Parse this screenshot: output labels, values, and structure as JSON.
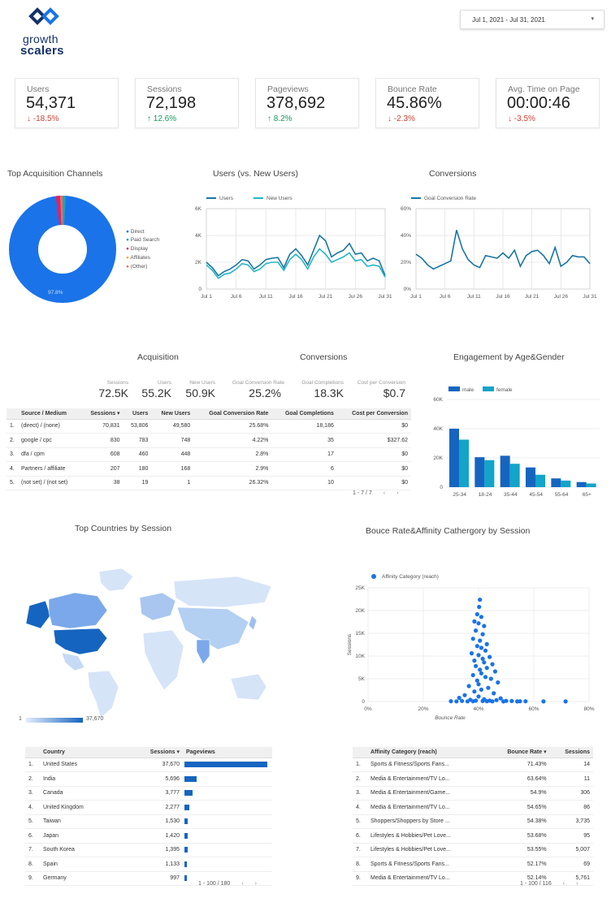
{
  "brand": {
    "line1": "growth",
    "line2": "scalers"
  },
  "date_range": {
    "label": "Jul 1, 2021 - Jul 31, 2021"
  },
  "kpis": [
    {
      "label": "Users",
      "value": "54,371",
      "delta": "-18.5%",
      "dir": "down"
    },
    {
      "label": "Sessions",
      "value": "72,198",
      "delta": "12.6%",
      "dir": "up"
    },
    {
      "label": "Pageviews",
      "value": "378,692",
      "delta": "8.2%",
      "dir": "up"
    },
    {
      "label": "Bounce Rate",
      "value": "45.86%",
      "delta": "-2.3%",
      "dir": "down"
    },
    {
      "label": "Avg. Time on Page",
      "value": "00:00:46",
      "delta": "-3.5%",
      "dir": "down"
    }
  ],
  "donut": {
    "title": "Top Acquisition Channels",
    "legend": [
      "Direct",
      "Paid Search",
      "Display",
      "Affiliates",
      "(Other)"
    ],
    "center_label": "97.8%",
    "colors": [
      "#1a73e8",
      "#12a4c9",
      "#e91e63",
      "#f9a825",
      "#ff7043"
    ]
  },
  "users_chart": {
    "title": "Users (vs. New Users)",
    "legend": [
      "Users",
      "New Users"
    ],
    "y_ticks": [
      "6K",
      "4K",
      "2K",
      "0"
    ],
    "x_ticks": [
      "Jul 1",
      "Jul 6",
      "Jul 11",
      "Jul 16",
      "Jul 21",
      "Jul 26",
      "Jul 31"
    ]
  },
  "conv_chart": {
    "title": "Conversions",
    "legend": [
      "Goal Conversion Rate"
    ],
    "y_ticks": [
      "60%",
      "40%",
      "20%",
      "0%"
    ],
    "x_ticks": [
      "Jul 1",
      "Jul 6",
      "Jul 11",
      "Jul 16",
      "Jul 21",
      "Jul 26",
      "Jul 31"
    ]
  },
  "acq_section": {
    "acq_title": "Acquisition",
    "conv_title": "Conversions"
  },
  "scorecards": [
    {
      "label": "Sessions",
      "value": "72.5K"
    },
    {
      "label": "Users",
      "value": "55.2K"
    },
    {
      "label": "New Users",
      "value": "50.9K"
    },
    {
      "label": "Goal Conversion Rate",
      "value": "25.2%"
    },
    {
      "label": "Goal Completions",
      "value": "18.3K"
    },
    {
      "label": "Cost per Conversion",
      "value": "$0.7"
    }
  ],
  "acq_table": {
    "headers": [
      "Source / Medium",
      "Sessions ▾",
      "Users",
      "New Users",
      "Goal Conversion Rate",
      "Goal Completions",
      "Cost per Conversion"
    ],
    "rows": [
      [
        "1.",
        "(direct) / (none)",
        "70,831",
        "53,806",
        "49,580",
        "25.68%",
        "18,186",
        "$0"
      ],
      [
        "2.",
        "google / cpc",
        "830",
        "783",
        "748",
        "4.22%",
        "35",
        "$327.62"
      ],
      [
        "3.",
        "dfa / cpm",
        "608",
        "460",
        "448",
        "2.8%",
        "17",
        "$0"
      ],
      [
        "4.",
        "Partners / affiliate",
        "207",
        "180",
        "168",
        "2.9%",
        "6",
        "$0"
      ],
      [
        "5.",
        "(not set) / (not set)",
        "38",
        "19",
        "1",
        "26.32%",
        "10",
        "$0"
      ]
    ],
    "pager": "1 - 7 / 7"
  },
  "engagement": {
    "title": "Engagement by Age&Gender",
    "legend": [
      "male",
      "female"
    ],
    "y_ticks": [
      "60K",
      "40K",
      "20K",
      "0"
    ],
    "colors": [
      "#1565c0",
      "#12a4c9"
    ]
  },
  "chart_data": [
    {
      "type": "line",
      "title": "Users (vs. New Users)",
      "x": [
        "Jul 1",
        "Jul 2",
        "Jul 3",
        "Jul 4",
        "Jul 5",
        "Jul 6",
        "Jul 7",
        "Jul 8",
        "Jul 9",
        "Jul 10",
        "Jul 11",
        "Jul 12",
        "Jul 13",
        "Jul 14",
        "Jul 15",
        "Jul 16",
        "Jul 17",
        "Jul 18",
        "Jul 19",
        "Jul 20",
        "Jul 21",
        "Jul 22",
        "Jul 23",
        "Jul 24",
        "Jul 25",
        "Jul 26",
        "Jul 27",
        "Jul 28",
        "Jul 29",
        "Jul 30",
        "Jul 31"
      ],
      "ylim": [
        0,
        6000
      ],
      "series": [
        {
          "name": "Users",
          "values": [
            2000,
            1600,
            1000,
            1300,
            1500,
            1800,
            2200,
            2100,
            1500,
            1800,
            2200,
            2300,
            2350,
            1600,
            2600,
            3000,
            2500,
            1800,
            2900,
            4000,
            3600,
            2400,
            2700,
            2900,
            3400,
            2600,
            2700,
            2100,
            2300,
            2100,
            1000
          ]
        },
        {
          "name": "New Users",
          "values": [
            1800,
            1400,
            800,
            1100,
            1200,
            1500,
            1900,
            1800,
            1300,
            1500,
            1900,
            2000,
            2000,
            1400,
            2200,
            2600,
            2200,
            1500,
            2400,
            3000,
            2600,
            2000,
            2200,
            2400,
            2700,
            2100,
            2200,
            1700,
            1800,
            1700,
            900
          ]
        }
      ]
    },
    {
      "type": "line",
      "title": "Conversions",
      "x": [
        "Jul 1",
        "Jul 2",
        "Jul 3",
        "Jul 4",
        "Jul 5",
        "Jul 6",
        "Jul 7",
        "Jul 8",
        "Jul 9",
        "Jul 10",
        "Jul 11",
        "Jul 12",
        "Jul 13",
        "Jul 14",
        "Jul 15",
        "Jul 16",
        "Jul 17",
        "Jul 18",
        "Jul 19",
        "Jul 20",
        "Jul 21",
        "Jul 22",
        "Jul 23",
        "Jul 24",
        "Jul 25",
        "Jul 26",
        "Jul 27",
        "Jul 28",
        "Jul 29",
        "Jul 30",
        "Jul 31"
      ],
      "ylim": [
        0,
        60
      ],
      "series": [
        {
          "name": "Goal Conversion Rate",
          "values": [
            26,
            23,
            18,
            15,
            17,
            19,
            21,
            44,
            30,
            22,
            18,
            16,
            25,
            24,
            23,
            27,
            23,
            29,
            17,
            25,
            28,
            29,
            25,
            19,
            31,
            17,
            20,
            25,
            24,
            24,
            19
          ]
        }
      ]
    },
    {
      "type": "bar",
      "title": "Engagement by Age&Gender",
      "categories": [
        "25-34",
        "18-24",
        "35-44",
        "45-54",
        "55-64",
        "65+"
      ],
      "ylim": [
        0,
        60000
      ],
      "series": [
        {
          "name": "male",
          "values": [
            40000,
            20500,
            21500,
            13500,
            6000,
            3500
          ]
        },
        {
          "name": "female",
          "values": [
            32500,
            18500,
            16000,
            8500,
            4500,
            2500
          ]
        }
      ]
    },
    {
      "type": "scatter",
      "title": "Bouce Rate&Affinity Cathergory by Session",
      "xlabel": "Bounce Rate",
      "ylabel": "Sessions",
      "series_label": "Affinity Category (reach)",
      "xlim": [
        0,
        80
      ],
      "ylim": [
        0,
        25000
      ],
      "x_ticks": [
        "0%",
        "20%",
        "40%",
        "60%",
        "80%"
      ],
      "y_ticks": [
        "25K",
        "20K",
        "15K",
        "10K",
        "5K",
        "0"
      ],
      "points": [
        [
          40.5,
          22400
        ],
        [
          40.2,
          20800
        ],
        [
          39.5,
          19200
        ],
        [
          41,
          18600
        ],
        [
          38.5,
          17600
        ],
        [
          40,
          17200
        ],
        [
          42,
          16600
        ],
        [
          39,
          15600
        ],
        [
          41.5,
          14800
        ],
        [
          38,
          13800
        ],
        [
          40.5,
          13400
        ],
        [
          43,
          12600
        ],
        [
          39.5,
          12200
        ],
        [
          41,
          11800
        ],
        [
          42.5,
          11200
        ],
        [
          37.5,
          10600
        ],
        [
          40,
          10200
        ],
        [
          44,
          9800
        ],
        [
          41.5,
          9400
        ],
        [
          38.5,
          9000
        ],
        [
          42,
          8600
        ],
        [
          45,
          8200
        ],
        [
          39,
          7800
        ],
        [
          43,
          7400
        ],
        [
          40.5,
          7000
        ],
        [
          46,
          6600
        ],
        [
          41,
          6200
        ],
        [
          38,
          5800
        ],
        [
          42.5,
          5400
        ],
        [
          44.5,
          5000
        ],
        [
          39.5,
          4600
        ],
        [
          47,
          4200
        ],
        [
          40,
          3800
        ],
        [
          36.5,
          3400
        ],
        [
          43.5,
          3000
        ],
        [
          41,
          2600
        ],
        [
          38.5,
          2200
        ],
        [
          45.5,
          1800
        ],
        [
          35,
          1400
        ],
        [
          40,
          1100
        ],
        [
          33,
          800
        ],
        [
          48,
          700
        ],
        [
          42,
          500
        ],
        [
          37,
          400
        ],
        [
          46.5,
          300
        ],
        [
          39,
          200
        ],
        [
          44,
          200
        ],
        [
          50,
          150
        ],
        [
          34,
          120
        ],
        [
          41.5,
          100
        ],
        [
          52,
          100
        ],
        [
          30,
          80
        ],
        [
          43,
          70
        ],
        [
          55,
          60
        ],
        [
          38,
          60
        ],
        [
          57,
          50
        ],
        [
          36,
          40
        ],
        [
          63.5,
          20
        ],
        [
          71.5,
          10
        ],
        [
          45,
          30
        ],
        [
          32,
          30
        ],
        [
          49,
          25
        ],
        [
          54,
          20
        ]
      ]
    }
  ],
  "map": {
    "title": "Top Countries by Session",
    "scale_min": "1",
    "scale_max": "37,670"
  },
  "country_table": {
    "headers": [
      "Country",
      "Sessions ▾",
      "Pageviews"
    ],
    "rows": [
      [
        "1.",
        "United States",
        "37,670",
        1.0
      ],
      [
        "2.",
        "India",
        "5,696",
        0.151
      ],
      [
        "3.",
        "Canada",
        "3,777",
        0.1
      ],
      [
        "4.",
        "United Kingdom",
        "2,277",
        0.06
      ],
      [
        "5.",
        "Taiwan",
        "1,530",
        0.041
      ],
      [
        "6.",
        "Japan",
        "1,420",
        0.038
      ],
      [
        "7.",
        "South Korea",
        "1,395",
        0.037
      ],
      [
        "8.",
        "Spain",
        "1,133",
        0.03
      ],
      [
        "9.",
        "Germany",
        "997",
        0.026
      ]
    ],
    "pager": "1 - 100 / 180"
  },
  "scatter": {
    "title": "Bouce Rate&Affinity Cathergory by Session",
    "legend": "Affinity Category (reach)"
  },
  "affinity_table": {
    "headers": [
      "Affinity Category (reach)",
      "Bounce Rate ▾",
      "Sessions"
    ],
    "rows": [
      [
        "1.",
        "Sports & Fitness/Sports Fans...",
        "71.43%",
        "14"
      ],
      [
        "2.",
        "Media & Entertainment/TV Lo...",
        "63.64%",
        "11"
      ],
      [
        "3.",
        "Media & Entertainment/Game...",
        "54.9%",
        "306"
      ],
      [
        "4.",
        "Media & Entertainment/TV Lo...",
        "54.65%",
        "86"
      ],
      [
        "5.",
        "Shoppers/Shoppers by Store ...",
        "54.38%",
        "3,735"
      ],
      [
        "6.",
        "Lifestyles & Hobbies/Pet Love...",
        "53.68%",
        "95"
      ],
      [
        "7.",
        "Lifestyles & Hobbies/Pet Love...",
        "53.55%",
        "5,007"
      ],
      [
        "8.",
        "Sports & Fitness/Sports Fans...",
        "52.17%",
        "69"
      ],
      [
        "9.",
        "Media & Entertainment/TV Lo...",
        "52.14%",
        "5,761"
      ]
    ],
    "pager": "1 - 100 / 116"
  }
}
